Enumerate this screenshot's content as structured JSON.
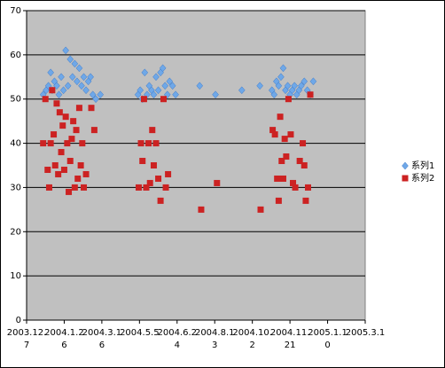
{
  "chart_data": {
    "type": "scatter",
    "xlim": [
      "2003-12-07",
      "2005-03-01"
    ],
    "xticks": [
      {
        "value": "2003-12-07",
        "label": "2003.12.7"
      },
      {
        "value": "2004-01-26",
        "label": "2004.1.26"
      },
      {
        "value": "2004-03-16",
        "label": "2004.3.16"
      },
      {
        "value": "2004-05-05",
        "label": "2004.5.5"
      },
      {
        "value": "2004-06-24",
        "label": "2004.6.24"
      },
      {
        "value": "2004-08-13",
        "label": "2004.8.13"
      },
      {
        "value": "2004-10-02",
        "label": "2004.10.2"
      },
      {
        "value": "2004-11-21",
        "label": "2004.11.21"
      },
      {
        "value": "2005-01-10",
        "label": "2005.1.10"
      },
      {
        "value": "2005-03-01",
        "label": "2005.3.1"
      }
    ],
    "ylim": [
      0,
      70
    ],
    "yticks": [
      0,
      10,
      20,
      30,
      40,
      50,
      60,
      70
    ],
    "grid": true,
    "legend": "right",
    "series": [
      {
        "name": "系列1",
        "color": "#6fa8e8",
        "marker": "diamond",
        "x": [
          "2003-12-29",
          "2004-01-02",
          "2004-01-05",
          "2004-01-08",
          "2004-01-10",
          "2004-01-13",
          "2004-01-16",
          "2004-01-19",
          "2004-01-22",
          "2004-01-25",
          "2004-01-28",
          "2004-01-31",
          "2004-02-03",
          "2004-02-06",
          "2004-02-09",
          "2004-02-12",
          "2004-02-15",
          "2004-02-18",
          "2004-02-21",
          "2004-02-24",
          "2004-02-27",
          "2004-03-01",
          "2004-03-04",
          "2004-03-08",
          "2004-03-14",
          "2004-05-03",
          "2004-05-06",
          "2004-05-09",
          "2004-05-12",
          "2004-05-15",
          "2004-05-18",
          "2004-05-21",
          "2004-05-24",
          "2004-05-27",
          "2004-05-30",
          "2004-06-02",
          "2004-06-05",
          "2004-06-08",
          "2004-06-11",
          "2004-06-14",
          "2004-06-18",
          "2004-06-22",
          "2004-07-24",
          "2004-08-14",
          "2004-09-18",
          "2004-10-12",
          "2004-10-28",
          "2004-10-31",
          "2004-11-03",
          "2004-11-06",
          "2004-11-09",
          "2004-11-12",
          "2004-11-15",
          "2004-11-18",
          "2004-11-21",
          "2004-11-24",
          "2004-11-27",
          "2004-11-30",
          "2004-12-03",
          "2004-12-06",
          "2004-12-10",
          "2004-12-14",
          "2004-12-18",
          "2004-12-22"
        ],
        "values": [
          51,
          52,
          53,
          56,
          52,
          54,
          53,
          51,
          55,
          52,
          61,
          53,
          59,
          55,
          58,
          54,
          57,
          53,
          55,
          52,
          54,
          55,
          51,
          50,
          51,
          51,
          52,
          50,
          56,
          51,
          53,
          52,
          51,
          55,
          52,
          56,
          57,
          53,
          51,
          54,
          53,
          51,
          53,
          51,
          52,
          53,
          52,
          51,
          54,
          53,
          55,
          57,
          52,
          53,
          51,
          52,
          53,
          51,
          52,
          53,
          54,
          52,
          51,
          54
        ]
      },
      {
        "name": "系列2",
        "color": "#cc2222",
        "marker": "square",
        "x": [
          "2003-12-29",
          "2004-01-01",
          "2004-01-04",
          "2004-01-06",
          "2004-01-08",
          "2004-01-10",
          "2004-01-12",
          "2004-01-14",
          "2004-01-16",
          "2004-01-18",
          "2004-01-20",
          "2004-01-22",
          "2004-01-24",
          "2004-01-26",
          "2004-01-28",
          "2004-01-30",
          "2004-02-01",
          "2004-02-03",
          "2004-02-05",
          "2004-02-07",
          "2004-02-09",
          "2004-02-11",
          "2004-02-13",
          "2004-02-15",
          "2004-02-17",
          "2004-02-19",
          "2004-02-21",
          "2004-02-24",
          "2004-03-02",
          "2004-03-06",
          "2004-05-04",
          "2004-05-07",
          "2004-05-09",
          "2004-05-11",
          "2004-05-14",
          "2004-05-17",
          "2004-05-19",
          "2004-05-22",
          "2004-05-24",
          "2004-05-27",
          "2004-05-30",
          "2004-06-02",
          "2004-06-06",
          "2004-06-09",
          "2004-06-12",
          "2004-07-26",
          "2004-08-16",
          "2004-10-13",
          "2004-10-29",
          "2004-11-01",
          "2004-11-04",
          "2004-11-06",
          "2004-11-08",
          "2004-11-10",
          "2004-11-12",
          "2004-11-14",
          "2004-11-16",
          "2004-11-19",
          "2004-11-22",
          "2004-11-25",
          "2004-11-28",
          "2004-12-04",
          "2004-12-08",
          "2004-12-10",
          "2004-12-12",
          "2004-12-15",
          "2004-12-18"
        ],
        "values": [
          40,
          50,
          34,
          30,
          40,
          52,
          42,
          35,
          49,
          33,
          47,
          38,
          44,
          34,
          46,
          40,
          29,
          36,
          41,
          45,
          30,
          43,
          32,
          48,
          35,
          40,
          30,
          33,
          48,
          43,
          30,
          40,
          36,
          50,
          30,
          40,
          31,
          43,
          35,
          40,
          32,
          27,
          50,
          30,
          33,
          25,
          31,
          25,
          43,
          42,
          32,
          27,
          46,
          36,
          32,
          41,
          37,
          50,
          42,
          31,
          30,
          36,
          40,
          35,
          27,
          30,
          51
        ]
      }
    ]
  }
}
